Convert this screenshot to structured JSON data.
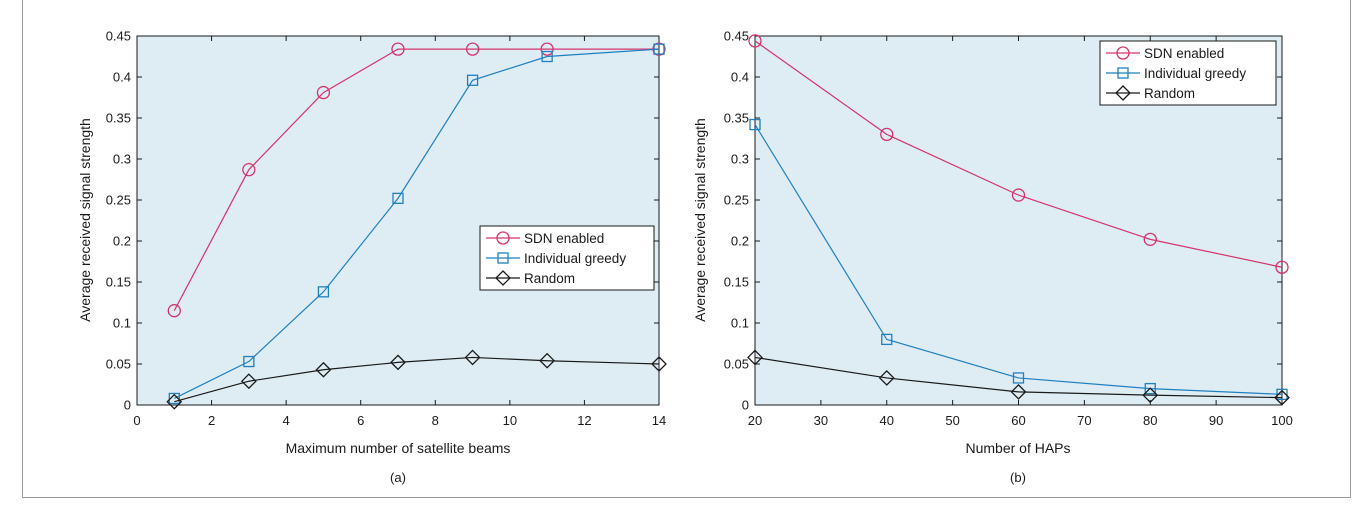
{
  "chart_data": [
    {
      "type": "line",
      "caption": "(a)",
      "xlabel": "Maximum number of satellite beams",
      "ylabel": "Average received signal strength",
      "xlim": [
        0,
        14
      ],
      "ylim": [
        0,
        0.45
      ],
      "xticks": [
        "0",
        "2",
        "4",
        "6",
        "8",
        "10",
        "12",
        "14"
      ],
      "yticks": [
        "0",
        "0.05",
        "0.1",
        "0.15",
        "0.2",
        "0.25",
        "0.3",
        "0.35",
        "0.4",
        "0.45"
      ],
      "x": [
        1,
        3,
        5,
        7,
        9,
        11,
        14
      ],
      "legend_position": "center-right",
      "background": "#deedf4",
      "series": [
        {
          "name": "SDN enabled",
          "color": "#d6336c",
          "marker": "circle",
          "values": [
            0.115,
            0.287,
            0.381,
            0.434,
            0.434,
            0.434,
            0.434
          ]
        },
        {
          "name": "Individual greedy",
          "color": "#1f7fbf",
          "marker": "square",
          "values": [
            0.008,
            0.053,
            0.138,
            0.252,
            0.396,
            0.425,
            0.434
          ]
        },
        {
          "name": "Random",
          "color": "#1a1a1a",
          "marker": "diamond",
          "values": [
            0.004,
            0.029,
            0.043,
            0.052,
            0.058,
            0.054,
            0.05
          ]
        }
      ]
    },
    {
      "type": "line",
      "caption": "(b)",
      "xlabel": "Number of HAPs",
      "ylabel": "Average received signal strength",
      "xlim": [
        20,
        100
      ],
      "ylim": [
        0,
        0.45
      ],
      "xticks": [
        "20",
        "30",
        "40",
        "50",
        "60",
        "70",
        "80",
        "90",
        "100"
      ],
      "yticks": [
        "0",
        "0.05",
        "0.1",
        "0.15",
        "0.2",
        "0.25",
        "0.3",
        "0.35",
        "0.4",
        "0.45"
      ],
      "x": [
        20,
        40,
        60,
        80,
        100
      ],
      "legend_position": "top-right",
      "background": "#deedf4",
      "series": [
        {
          "name": "SDN enabled",
          "color": "#d6336c",
          "marker": "circle",
          "values": [
            0.444,
            0.33,
            0.256,
            0.202,
            0.168
          ]
        },
        {
          "name": "Individual greedy",
          "color": "#1f7fbf",
          "marker": "square",
          "values": [
            0.342,
            0.08,
            0.033,
            0.02,
            0.013
          ]
        },
        {
          "name": "Random",
          "color": "#1a1a1a",
          "marker": "diamond",
          "values": [
            0.058,
            0.033,
            0.016,
            0.012,
            0.009
          ]
        }
      ]
    }
  ]
}
